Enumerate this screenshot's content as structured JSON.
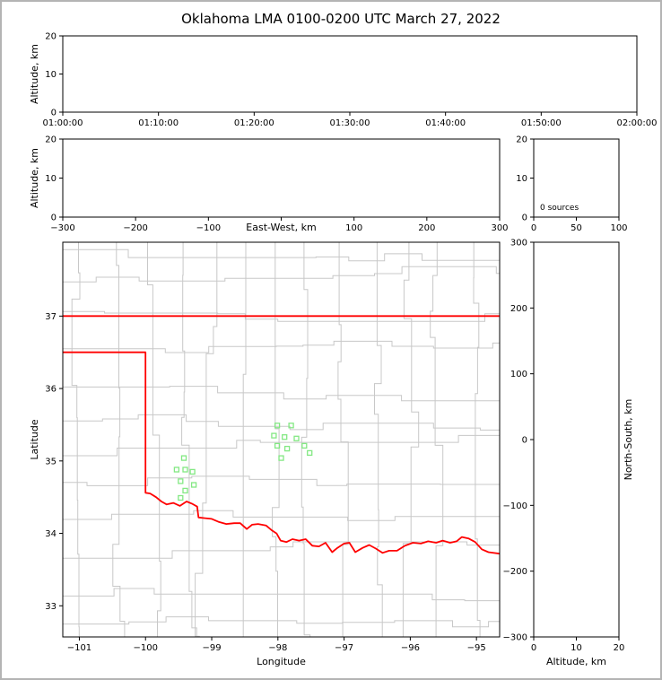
{
  "title": "Oklahoma LMA 0100-0200 UTC March 27, 2022",
  "colors": {
    "background": "#ffffff",
    "figure_border": "#b4b4b4",
    "panel_frame": "#000000",
    "state_border": "#ff0000",
    "county_line": "#c8c8c8",
    "source_marker": "#83e883",
    "text": "#000000"
  },
  "chart_data": [
    {
      "id": "altitude-vs-time",
      "type": "scatter",
      "ylabel": "Altitude, km",
      "ylim": [
        0,
        20
      ],
      "yticks": [
        0,
        10,
        20
      ],
      "xticklabels": [
        "01:00:00",
        "01:10:00",
        "01:20:00",
        "01:30:00",
        "01:40:00",
        "01:50:00",
        "02:00:00"
      ],
      "points": []
    },
    {
      "id": "altitude-vs-east-west",
      "type": "scatter",
      "xlabel": "East-West, km",
      "xlabel_inline": true,
      "hide_zero_xtick": true,
      "ylabel": "Altitude, km",
      "xlim": [
        -300,
        300
      ],
      "xticks": [
        -300,
        -200,
        -100,
        0,
        100,
        200,
        300
      ],
      "ylim": [
        0,
        20
      ],
      "yticks": [
        0,
        10,
        20
      ],
      "points": []
    },
    {
      "id": "source-count-histogram",
      "type": "line",
      "xlim": [
        0,
        100
      ],
      "xticks": [
        0,
        50,
        100
      ],
      "ylim": [
        0,
        20
      ],
      "yticks": [
        0,
        10,
        20
      ],
      "annotation": "0 sources",
      "points": []
    },
    {
      "id": "plan-view-map",
      "type": "scatter",
      "xlabel": "Longitude",
      "ylabel": "Latitude",
      "xlim": [
        -101.25,
        -94.65
      ],
      "xticks": [
        -101,
        -100,
        -99,
        -98,
        -97,
        -96,
        -95
      ],
      "ylim": [
        32.57,
        38.02
      ],
      "yticks": [
        33,
        34,
        35,
        36,
        37
      ],
      "points": [
        [
          -99.42,
          35.04
        ],
        [
          -99.53,
          34.88
        ],
        [
          -99.4,
          34.88
        ],
        [
          -99.29,
          34.85
        ],
        [
          -99.47,
          34.72
        ],
        [
          -99.4,
          34.59
        ],
        [
          -99.27,
          34.67
        ],
        [
          -99.47,
          34.49
        ],
        [
          -98.01,
          35.49
        ],
        [
          -97.8,
          35.49
        ],
        [
          -98.06,
          35.35
        ],
        [
          -97.9,
          35.33
        ],
        [
          -97.72,
          35.31
        ],
        [
          -98.01,
          35.21
        ],
        [
          -97.86,
          35.17
        ],
        [
          -97.6,
          35.21
        ],
        [
          -97.52,
          35.11
        ],
        [
          -97.95,
          35.04
        ]
      ]
    },
    {
      "id": "altitude-vs-north-south",
      "type": "scatter",
      "xlabel": "Altitude, km",
      "ylabel": "North-South, km",
      "ylabel_side": "right",
      "xlim": [
        0,
        20
      ],
      "xticks": [
        0,
        10,
        20
      ],
      "ylim": [
        -300,
        300
      ],
      "yticks": [
        -300,
        -200,
        -100,
        0,
        100,
        200,
        300
      ],
      "points": []
    }
  ],
  "map": {
    "marker_shape": "open-square",
    "north_border": [
      [
        -101.25,
        37.0
      ],
      [
        -94.65,
        37.0
      ]
    ],
    "texas_border": [
      [
        -101.25,
        36.5
      ],
      [
        -100.0,
        36.5
      ],
      [
        -100.0,
        34.56
      ],
      [
        -99.93,
        34.55
      ],
      [
        -99.84,
        34.5
      ],
      [
        -99.76,
        34.44
      ],
      [
        -99.68,
        34.4
      ],
      [
        -99.58,
        34.42
      ],
      [
        -99.48,
        34.38
      ],
      [
        -99.38,
        34.44
      ],
      [
        -99.3,
        34.41
      ],
      [
        -99.22,
        34.37
      ],
      [
        -99.2,
        34.22
      ],
      [
        -99.1,
        34.21
      ],
      [
        -99.0,
        34.2
      ],
      [
        -98.9,
        34.16
      ],
      [
        -98.78,
        34.13
      ],
      [
        -98.66,
        34.14
      ],
      [
        -98.57,
        34.14
      ],
      [
        -98.47,
        34.06
      ],
      [
        -98.39,
        34.12
      ],
      [
        -98.3,
        34.13
      ],
      [
        -98.18,
        34.11
      ],
      [
        -98.09,
        34.04
      ],
      [
        -98.02,
        34.0
      ],
      [
        -97.96,
        33.9
      ],
      [
        -97.87,
        33.88
      ],
      [
        -97.78,
        33.92
      ],
      [
        -97.68,
        33.9
      ],
      [
        -97.58,
        33.92
      ],
      [
        -97.48,
        33.83
      ],
      [
        -97.38,
        33.82
      ],
      [
        -97.28,
        33.87
      ],
      [
        -97.18,
        33.74
      ],
      [
        -97.1,
        33.8
      ],
      [
        -97.0,
        33.86
      ],
      [
        -96.92,
        33.87
      ],
      [
        -96.83,
        33.74
      ],
      [
        -96.72,
        33.8
      ],
      [
        -96.62,
        33.84
      ],
      [
        -96.52,
        33.79
      ],
      [
        -96.42,
        33.73
      ],
      [
        -96.32,
        33.76
      ],
      [
        -96.2,
        33.76
      ],
      [
        -96.08,
        33.83
      ],
      [
        -95.96,
        33.87
      ],
      [
        -95.84,
        33.86
      ],
      [
        -95.73,
        33.89
      ],
      [
        -95.61,
        33.87
      ],
      [
        -95.51,
        33.9
      ],
      [
        -95.4,
        33.87
      ],
      [
        -95.3,
        33.89
      ],
      [
        -95.22,
        33.95
      ],
      [
        -95.12,
        33.93
      ],
      [
        -95.02,
        33.88
      ],
      [
        -94.92,
        33.78
      ],
      [
        -94.82,
        33.74
      ],
      [
        -94.65,
        33.72
      ]
    ]
  }
}
